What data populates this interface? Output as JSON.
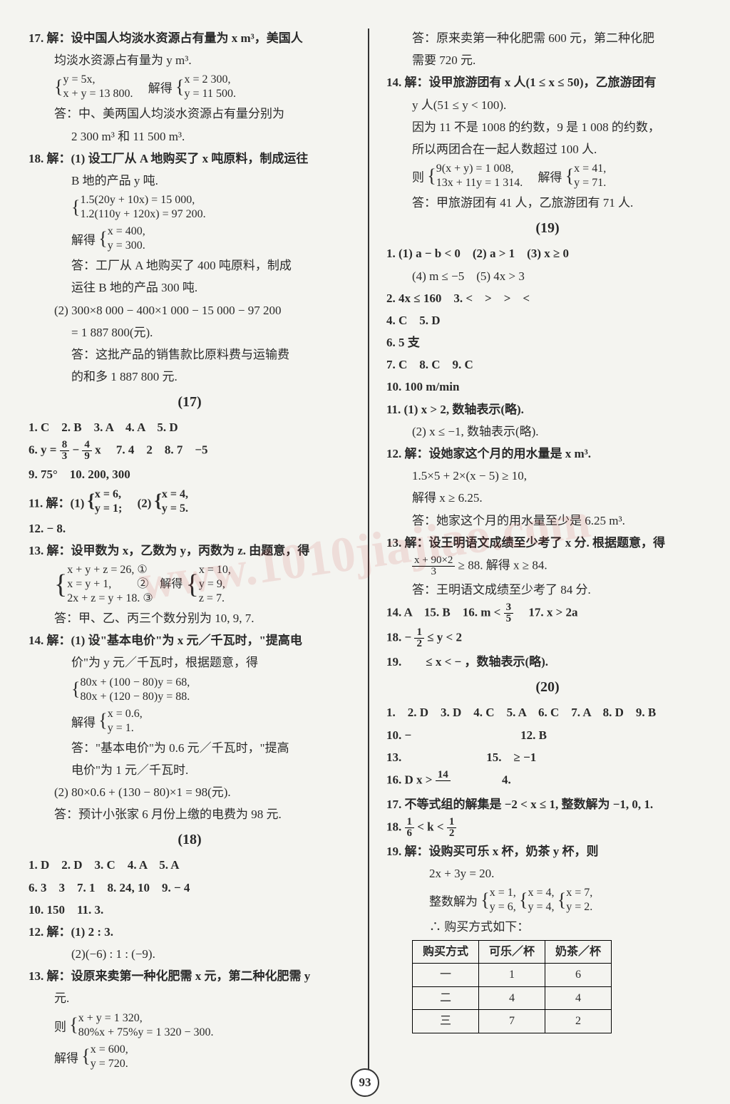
{
  "page_number": "93",
  "watermark": "www.1010jiajiao.com",
  "left": {
    "q17": {
      "head": "17. 解：设中国人均淡水资源占有量为 x m³，美国人",
      "head2": "均淡水资源占有量为 y m³.",
      "sys_l1": "y = 5x,",
      "sys_l2": "x + y = 13 800.",
      "sys_mid": "解得",
      "sys_r1": "x = 2 300,",
      "sys_r2": "y = 11 500.",
      "ans1": "答：中、美两国人均淡水资源占有量分别为",
      "ans2": "2 300 m³ 和 11 500 m³."
    },
    "q18": {
      "head": "18. 解：(1) 设工厂从 A 地购买了 x 吨原料，制成运往",
      "head2": "B 地的产品 y 吨.",
      "sys_l1": "1.5(20y + 10x) = 15 000,",
      "sys_l2": "1.2(110y + 120x) = 97 200.",
      "mid": "解得",
      "sys_r1": "x = 400,",
      "sys_r2": "y = 300.",
      "ans1": "答：工厂从 A 地购买了 400 吨原料，制成",
      "ans2": "运往 B 地的产品 300 吨.",
      "p2a": "(2) 300×8 000 − 400×1 000 − 15 000 − 97 200",
      "p2b": "= 1 887 800(元).",
      "p2ans1": "答：这批产品的销售款比原料费与运输费",
      "p2ans2": "的和多 1 887 800 元."
    },
    "sec17": {
      "hdr": "(17)",
      "l1": "1. C　2. B　3. A　4. A　5. D",
      "l6a": "6. y = ",
      "l6b": "　7. 4　2　8. 7　−5",
      "l9": "9. 75°　10. 200, 300",
      "l11": "11. 解：(1) ",
      "l11a1": "x = 6,",
      "l11a2": "y = 1;",
      "l11b": "　(2) ",
      "l11b1": "x = 4,",
      "l11b2": "y = 5.",
      "l12": "12. − 8.",
      "l13": "13. 解：设甲数为 x，乙数为 y，丙数为 z. 由题意，得",
      "l13s1": "x + y + z = 26, ①",
      "l13s2": "x = y + 1,　　 ②　解得",
      "l13s3": "2x + z = y + 18. ③",
      "l13r1": "x = 10,",
      "l13r2": "y = 9,",
      "l13r3": "z = 7.",
      "l13ans": "答：甲、乙、丙三个数分别为 10, 9, 7.",
      "l14": "14. 解：(1) 设\"基本电价\"为 x 元／千瓦时，\"提高电",
      "l14b": "价\"为 y 元／千瓦时，根据题意，得",
      "l14s1": "80x + (100 − 80)y = 68,",
      "l14s2": "80x + (120 − 80)y = 88.",
      "l14mid": "解得",
      "l14r1": "x = 0.6,",
      "l14r2": "y = 1.",
      "l14ans1": "答：\"基本电价\"为 0.6 元／千瓦时，\"提高",
      "l14ans2": "电价\"为 1 元／千瓦时.",
      "l14p2": "(2) 80×0.6 + (130 − 80)×1 = 98(元).",
      "l14p2ans": "答：预计小张家 6 月份上缴的电费为 98 元."
    },
    "sec18": {
      "hdr": "(18)",
      "l1": "1. D　2. D　3. C　4. A　5. A",
      "l6": "6. 3　3　7. 1　8. 24, 10　9. − 4",
      "l10": "10. 150　11. 3.",
      "l12a": "12. 解：(1) 2 : 3.",
      "l12b": "(2)(−6) : 1 : (−9).",
      "l13": "13. 解：设原来卖第一种化肥需 x 元，第二种化肥需 y",
      "l13b": "元.",
      "l13mid": "则",
      "l13s1": "x + y = 1 320,",
      "l13s2": "80%x + 75%y = 1 320 − 300.",
      "l13mid2": "解得",
      "l13r1": "x = 600,",
      "l13r2": "y = 720."
    }
  },
  "right": {
    "top1": "答：原来卖第一种化肥需 600 元，第二种化肥",
    "top2": "需要 720 元.",
    "q14": {
      "head": "14. 解：设甲旅游团有 x 人(1 ≤ x ≤ 50)，乙旅游团有",
      "head2": "y 人(51 ≤ y < 100).",
      "l1": "因为 11 不是 1008 的约数，9 是 1 008 的约数，",
      "l2": "所以两团合在一起人数超过 100 人.",
      "mid": "则",
      "s1": "9(x + y) = 1 008,",
      "s2": "13x + 11y = 1 314.",
      "mid2": "解得",
      "r1": "x = 41,",
      "r2": "y = 71.",
      "ans": "答：甲旅游团有 41 人，乙旅游团有 71 人."
    },
    "sec19": {
      "hdr": "(19)",
      "l1": "1. (1) a − b < 0　(2) a > 1　(3) x ≥ 0",
      "l1b": "(4) m ≤ −5　(5) 4x > 3",
      "l2": "2. 4x ≤ 160　3. <　>　>　<",
      "l4": "4. C　5. D",
      "l6": "6. 5 支",
      "l7": "7. C　8. C　9. C",
      "l10": "10. 100 m/min",
      "l11a": "11. (1) x > 2, 数轴表示(略).",
      "l11b": "(2) x ≤ −1, 数轴表示(略).",
      "l12": "12. 解：设她家这个月的用水量是 x m³.",
      "l12a": "1.5×5 + 2×(x − 5) ≥ 10,",
      "l12b": "解得 x ≥ 6.25.",
      "l12c": "答：她家这个月的用水量至少是 6.25 m³.",
      "l13": "13. 解：设王明语文成绩至少考了 x 分. 根据题意，得",
      "l13fr_num": "x + 90×2",
      "l13fr_den": "3",
      "l13b": " ≥ 88. 解得 x ≥ 84.",
      "l13ans": "答：王明语文成绩至少考了 84 分.",
      "l14": "14. A　15. B　16. m < ",
      "l14b": "　17. x > 2a",
      "l18": "18. − ",
      "l18b": " ≤ y < 2",
      "l19": "19.　　≤ x < − ，数轴表示(略)."
    },
    "sec20": {
      "hdr": "(20)",
      "l1": "1.　2. D　3. D　4. C　5. A　6. C　7. A　8. D　9. B",
      "l10": "10. −　　　　　　　　　12. B",
      "l13": "13.　　　　　　　15.　≥ −1",
      "l16": "16. D x > ",
      "l16num": "14",
      "l16den": "　",
      "l16b": "　　　　4.",
      "l17": "17. 不等式组的解集是 −2 < x ≤ 1, 整数解为 −1, 0, 1.",
      "l18": "18. ",
      "l18num1": "1",
      "l18den1": "6",
      "l18mid": " < k < ",
      "l18num2": "1",
      "l18den2": "2",
      "l19": "19. 解：设购买可乐 x 杯，奶茶 y 杯，则",
      "l19a": "2x + 3y = 20.",
      "l19b": "整数解为",
      "l19s1a": "x = 1,",
      "l19s1b": "y = 6,",
      "l19s2a": "x = 4,",
      "l19s2b": "y = 4,",
      "l19s3a": "x = 7,",
      "l19s3b": "y = 2.",
      "l19c": "∴ 购买方式如下：",
      "table": {
        "headers": [
          "购买方式",
          "可乐／杯",
          "奶茶／杯"
        ],
        "rows": [
          [
            "一",
            "1",
            "6"
          ],
          [
            "二",
            "4",
            "4"
          ],
          [
            "三",
            "7",
            "2"
          ]
        ]
      }
    }
  },
  "fractions": {
    "f83": {
      "num": "8",
      "den": "3"
    },
    "f49": {
      "num": "4",
      "den": "9"
    },
    "f35": {
      "num": "3",
      "den": "5"
    },
    "f12": {
      "num": "1",
      "den": "2"
    }
  }
}
